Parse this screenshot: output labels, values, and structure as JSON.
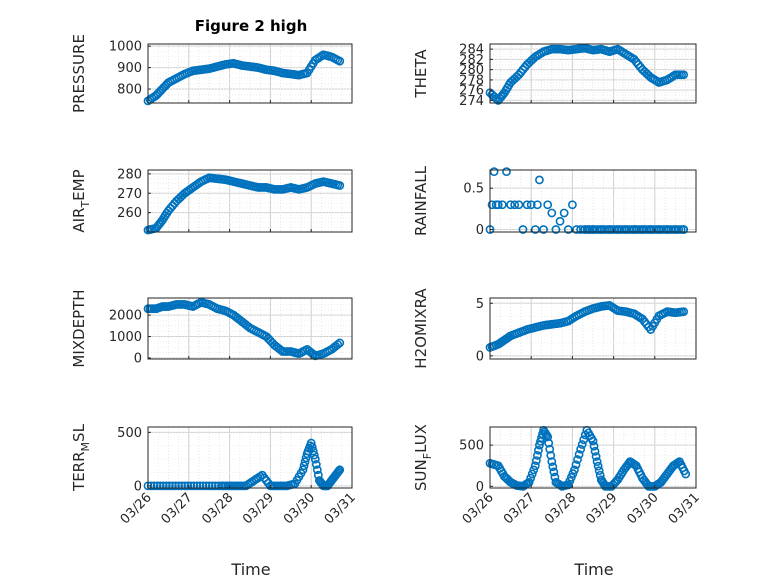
{
  "figure": {
    "title": "Figure 2 high",
    "xlabel": "Time"
  },
  "colors": {
    "marker": "#0072BD",
    "grid": "#cfcfcf",
    "axis": "#262626"
  },
  "chart_data": [
    {
      "type": "scatter",
      "id": "pressure",
      "ylabel": "PRESSURE",
      "x_ticks": [
        "03/26",
        "03/27",
        "03/28",
        "03/29",
        "03/30",
        "03/31"
      ],
      "y_ticks": [
        "800",
        "900",
        "1000"
      ],
      "y_tick_values": [
        800,
        900,
        1000
      ],
      "ylim": [
        735,
        1010
      ],
      "xlim": [
        0,
        5
      ],
      "x": [
        0.0,
        0.2,
        0.35,
        0.5,
        0.7,
        0.9,
        1.1,
        1.3,
        1.5,
        1.7,
        1.9,
        2.1,
        2.3,
        2.5,
        2.7,
        2.9,
        3.1,
        3.3,
        3.5,
        3.7,
        3.9,
        4.1,
        4.3,
        4.5,
        4.7
      ],
      "values": [
        745,
        770,
        800,
        830,
        850,
        870,
        885,
        890,
        895,
        905,
        915,
        920,
        910,
        905,
        900,
        890,
        885,
        875,
        870,
        865,
        875,
        935,
        960,
        950,
        930
      ]
    },
    {
      "type": "scatter",
      "id": "theta",
      "ylabel": "THETA",
      "x_ticks": [
        "03/26",
        "03/27",
        "03/28",
        "03/29",
        "03/30",
        "03/31"
      ],
      "y_ticks": [
        "274",
        "276",
        "278",
        "280",
        "282",
        "284"
      ],
      "y_tick_values": [
        274,
        276,
        278,
        280,
        282,
        284
      ],
      "ylim": [
        273.5,
        285
      ],
      "xlim": [
        0,
        5
      ],
      "x": [
        0.0,
        0.2,
        0.35,
        0.5,
        0.7,
        0.9,
        1.1,
        1.3,
        1.5,
        1.7,
        1.9,
        2.1,
        2.3,
        2.5,
        2.7,
        2.9,
        3.1,
        3.3,
        3.5,
        3.7,
        3.9,
        4.1,
        4.3,
        4.5,
        4.7
      ],
      "values": [
        275.5,
        274.0,
        275.5,
        277.5,
        279.0,
        281.0,
        282.5,
        283.5,
        284.0,
        284.0,
        283.8,
        284.0,
        284.2,
        283.8,
        284.0,
        283.5,
        284.0,
        283.0,
        282.0,
        280.0,
        278.5,
        277.5,
        278.0,
        279.0,
        279.0
      ]
    },
    {
      "type": "scatter",
      "id": "air_temp",
      "ylabel": "AIR_TEMP",
      "x_ticks": [
        "03/26",
        "03/27",
        "03/28",
        "03/29",
        "03/30",
        "03/31"
      ],
      "y_ticks": [
        "260",
        "270",
        "280"
      ],
      "y_tick_values": [
        260,
        270,
        280
      ],
      "ylim": [
        250,
        282
      ],
      "xlim": [
        0,
        5
      ],
      "x": [
        0.0,
        0.2,
        0.35,
        0.5,
        0.7,
        0.9,
        1.1,
        1.3,
        1.5,
        1.7,
        1.9,
        2.1,
        2.3,
        2.5,
        2.7,
        2.9,
        3.1,
        3.3,
        3.5,
        3.7,
        3.9,
        4.1,
        4.3,
        4.5,
        4.7
      ],
      "values": [
        251,
        252,
        256,
        261,
        266,
        270,
        273,
        276,
        278,
        277.5,
        277,
        276,
        275,
        274,
        273,
        273,
        272,
        272,
        273,
        272,
        273,
        275,
        276,
        275,
        274
      ]
    },
    {
      "type": "scatter",
      "id": "rainfall",
      "ylabel": "RAINFALL",
      "x_ticks": [
        "03/26",
        "03/27",
        "03/28",
        "03/29",
        "03/30",
        "03/31"
      ],
      "y_ticks": [
        "0",
        "0.5"
      ],
      "y_tick_values": [
        0,
        0.5
      ],
      "ylim": [
        -0.03,
        0.72
      ],
      "xlim": [
        0,
        5
      ],
      "x": [
        0.0,
        0.05,
        0.1,
        0.15,
        0.2,
        0.3,
        0.4,
        0.5,
        0.6,
        0.7,
        0.8,
        0.9,
        1.0,
        1.1,
        1.15,
        1.2,
        1.3,
        1.4,
        1.5,
        1.6,
        1.7,
        1.8,
        1.9,
        2.0,
        2.1,
        2.2,
        2.3,
        2.4,
        2.5,
        2.7,
        2.9,
        3.1,
        3.3,
        3.5,
        3.7,
        3.9,
        4.1,
        4.3,
        4.5,
        4.7
      ],
      "values": [
        0.0,
        0.3,
        0.7,
        0.3,
        0.3,
        0.3,
        0.7,
        0.3,
        0.3,
        0.3,
        0.0,
        0.3,
        0.3,
        0.0,
        0.3,
        0.6,
        0.0,
        0.3,
        0.2,
        0.0,
        0.1,
        0.2,
        0.0,
        0.3,
        0.0,
        0.0,
        0.0,
        0.0,
        0.0,
        0.0,
        0.0,
        0.0,
        0.0,
        0.0,
        0.0,
        0.0,
        0.0,
        0.0,
        0.0,
        0.0
      ]
    },
    {
      "type": "scatter",
      "id": "mixdepth",
      "ylabel": "MIXDEPTH",
      "x_ticks": [
        "03/26",
        "03/27",
        "03/28",
        "03/29",
        "03/30",
        "03/31"
      ],
      "y_ticks": [
        "0",
        "1000",
        "2000"
      ],
      "y_tick_values": [
        0,
        1000,
        2000
      ],
      "ylim": [
        -50,
        2800
      ],
      "xlim": [
        0,
        5
      ],
      "x": [
        0.0,
        0.2,
        0.35,
        0.5,
        0.7,
        0.9,
        1.1,
        1.3,
        1.5,
        1.7,
        1.9,
        2.1,
        2.3,
        2.5,
        2.7,
        2.9,
        3.1,
        3.3,
        3.5,
        3.7,
        3.9,
        4.1,
        4.3,
        4.5,
        4.7
      ],
      "values": [
        2300,
        2300,
        2400,
        2400,
        2500,
        2500,
        2400,
        2600,
        2500,
        2300,
        2200,
        2000,
        1700,
        1400,
        1200,
        1000,
        600,
        300,
        300,
        200,
        400,
        100,
        200,
        400,
        700
      ]
    },
    {
      "type": "scatter",
      "id": "h2omixra",
      "ylabel": "H2OMIXRA",
      "x_ticks": [
        "03/26",
        "03/27",
        "03/28",
        "03/29",
        "03/30",
        "03/31"
      ],
      "y_ticks": [
        "0",
        "5"
      ],
      "y_tick_values": [
        0,
        5
      ],
      "ylim": [
        -0.3,
        5.5
      ],
      "xlim": [
        0,
        5
      ],
      "x": [
        0.0,
        0.2,
        0.35,
        0.5,
        0.7,
        0.9,
        1.1,
        1.3,
        1.5,
        1.7,
        1.9,
        2.1,
        2.3,
        2.5,
        2.7,
        2.9,
        3.1,
        3.3,
        3.5,
        3.7,
        3.9,
        4.1,
        4.3,
        4.5,
        4.7
      ],
      "values": [
        0.8,
        1.1,
        1.5,
        1.9,
        2.2,
        2.5,
        2.7,
        2.9,
        3.0,
        3.1,
        3.3,
        3.8,
        4.2,
        4.5,
        4.7,
        4.8,
        4.3,
        4.2,
        4.0,
        3.5,
        2.5,
        3.8,
        4.2,
        4.1,
        4.2
      ]
    },
    {
      "type": "scatter",
      "id": "terr_msl",
      "ylabel": "TERR_MSL",
      "x_ticks": [
        "03/26",
        "03/27",
        "03/28",
        "03/29",
        "03/30",
        "03/31"
      ],
      "y_ticks": [
        "0",
        "500"
      ],
      "y_tick_values": [
        0,
        500
      ],
      "ylim": [
        -20,
        550
      ],
      "xlim": [
        0,
        5
      ],
      "x": [
        0.0,
        0.3,
        0.6,
        0.9,
        1.2,
        1.5,
        1.8,
        2.0,
        2.2,
        2.4,
        2.6,
        2.8,
        3.0,
        3.2,
        3.4,
        3.6,
        3.8,
        3.9,
        4.0,
        4.1,
        4.2,
        4.3,
        4.4,
        4.5,
        4.6,
        4.7
      ],
      "values": [
        0,
        0,
        0,
        0,
        0,
        0,
        0,
        0,
        0,
        0,
        50,
        100,
        0,
        0,
        0,
        20,
        150,
        300,
        400,
        250,
        50,
        0,
        0,
        50,
        100,
        150
      ]
    },
    {
      "type": "scatter",
      "id": "sun_flux",
      "ylabel": "SUN_FLUX",
      "x_ticks": [
        "03/26",
        "03/27",
        "03/28",
        "03/29",
        "03/30",
        "03/31"
      ],
      "y_ticks": [
        "0",
        "500"
      ],
      "y_tick_values": [
        0,
        500
      ],
      "ylim": [
        -20,
        720
      ],
      "xlim": [
        0,
        5
      ],
      "x": [
        0.0,
        0.2,
        0.35,
        0.5,
        0.65,
        0.8,
        0.95,
        1.1,
        1.2,
        1.3,
        1.4,
        1.5,
        1.6,
        1.75,
        1.9,
        2.05,
        2.2,
        2.35,
        2.5,
        2.6,
        2.7,
        2.8,
        2.95,
        3.1,
        3.25,
        3.4,
        3.55,
        3.7,
        3.85,
        4.0,
        4.15,
        4.3,
        4.45,
        4.6,
        4.75
      ],
      "values": [
        280,
        250,
        120,
        50,
        10,
        0,
        50,
        250,
        500,
        680,
        600,
        300,
        50,
        0,
        20,
        200,
        450,
        680,
        550,
        300,
        80,
        0,
        0,
        80,
        200,
        300,
        250,
        100,
        0,
        0,
        50,
        150,
        250,
        300,
        150
      ]
    }
  ]
}
